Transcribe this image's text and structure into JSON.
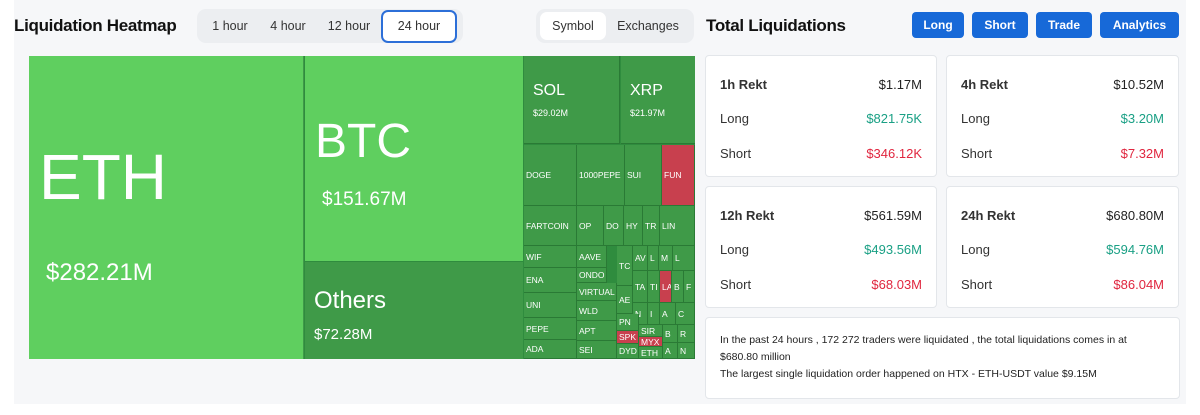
{
  "heatmap": {
    "title": "Liquidation Heatmap",
    "timeframes": [
      "1 hour",
      "4 hour",
      "12 hour",
      "24 hour"
    ],
    "active_timeframe": "24 hour",
    "views": [
      "Symbol",
      "Exchanges"
    ],
    "active_view": "Symbol",
    "tiles": {
      "eth": {
        "name": "ETH",
        "value": "$282.21M"
      },
      "btc": {
        "name": "BTC",
        "value": "$151.67M"
      },
      "others": {
        "name": "Others",
        "value": "$72.28M"
      },
      "sol": {
        "name": "SOL",
        "value": "$29.02M"
      },
      "xrp": {
        "name": "XRP",
        "value": "$21.97M"
      }
    },
    "small_tiles": [
      "DOGE",
      "1000PEPE",
      "SUI",
      "FUN",
      "FARTCOIN",
      "OP",
      "DO",
      "HY",
      "TR",
      "LIN",
      "WIF",
      "AAVE",
      "TC",
      "AV",
      "L",
      "M",
      "L",
      "ENA",
      "ONDO",
      "TA",
      "TI",
      "LA",
      "B",
      "F",
      "UNI",
      "VIRTUAL",
      "AE",
      "N",
      "I",
      "A",
      "C",
      "PEPE",
      "WLD",
      "PN",
      "SIR",
      "B",
      "R",
      "ADA",
      "APT",
      "SPK",
      "MYX",
      "SEI",
      "DYD",
      "ETH",
      "A",
      "N"
    ]
  },
  "totals": {
    "title": "Total Liquidations",
    "buttons": [
      "Long",
      "Short",
      "Trade",
      "Analytics"
    ],
    "cards": [
      {
        "title": "1h Rekt",
        "total": "$1.17M",
        "long_label": "Long",
        "long": "$821.75K",
        "short_label": "Short",
        "short": "$346.12K"
      },
      {
        "title": "4h Rekt",
        "total": "$10.52M",
        "long_label": "Long",
        "long": "$3.20M",
        "short_label": "Short",
        "short": "$7.32M"
      },
      {
        "title": "12h Rekt",
        "total": "$561.59M",
        "long_label": "Long",
        "long": "$493.56M",
        "short_label": "Short",
        "short": "$68.03M"
      },
      {
        "title": "24h Rekt",
        "total": "$680.80M",
        "long_label": "Long",
        "long": "$594.76M",
        "short_label": "Short",
        "short": "$86.04M"
      }
    ],
    "summary_line1": "In the past 24 hours , 172 272 traders were liquidated , the total liquidations comes in at $680.80 million",
    "summary_line2": "The largest single liquidation order happened on HTX - ETH-USDT value $9.15M"
  },
  "colors": {
    "accent": "#1769d8",
    "long": "#1aa085",
    "short": "#e0263f",
    "tile_green": "#5fcf5f",
    "tile_red": "#c8404e"
  }
}
